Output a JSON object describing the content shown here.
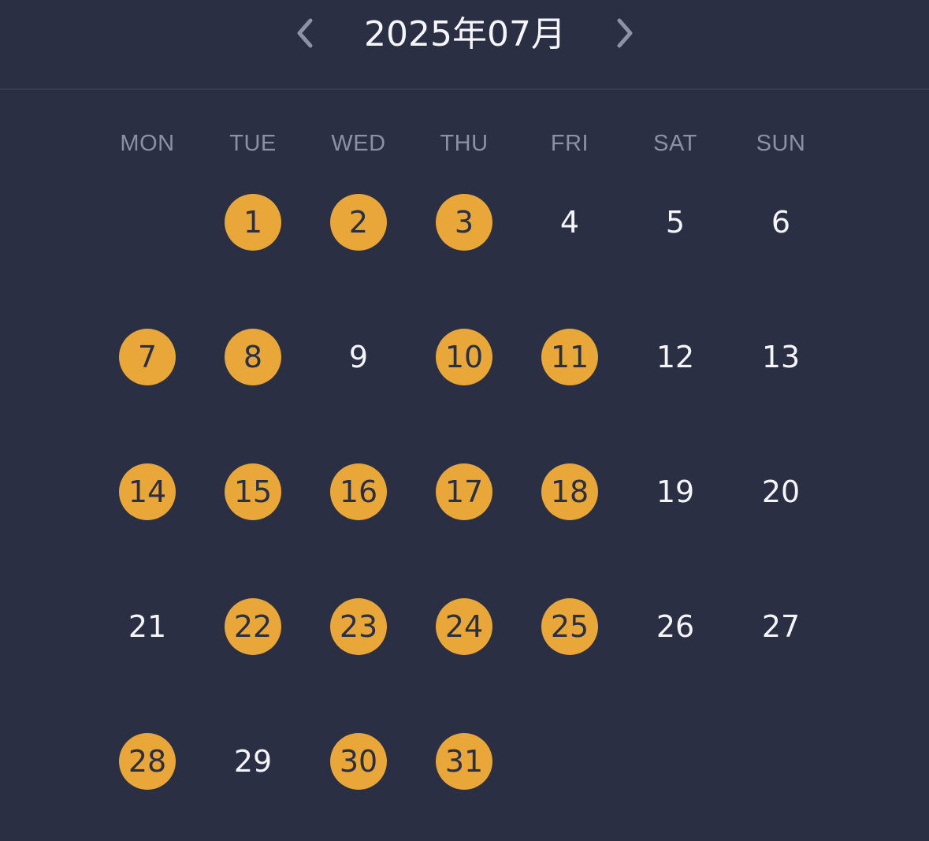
{
  "header": {
    "title": "2025年07月",
    "prev_icon": "chevron-left-icon",
    "next_icon": "chevron-right-icon"
  },
  "weekdays": [
    "MON",
    "TUE",
    "WED",
    "THU",
    "FRI",
    "SAT",
    "SUN"
  ],
  "colors": {
    "background": "#2b2f43",
    "marked": "#e8a738",
    "weekday_text": "#8c90a2",
    "day_text": "#f4f5f8"
  },
  "calendar": {
    "first_weekday_index": 1,
    "days": [
      {
        "label": "1",
        "marked": true
      },
      {
        "label": "2",
        "marked": true
      },
      {
        "label": "3",
        "marked": true
      },
      {
        "label": "4",
        "marked": false
      },
      {
        "label": "5",
        "marked": false
      },
      {
        "label": "6",
        "marked": false
      },
      {
        "label": "7",
        "marked": true
      },
      {
        "label": "8",
        "marked": true
      },
      {
        "label": "9",
        "marked": false
      },
      {
        "label": "10",
        "marked": true
      },
      {
        "label": "11",
        "marked": true
      },
      {
        "label": "12",
        "marked": false
      },
      {
        "label": "13",
        "marked": false
      },
      {
        "label": "14",
        "marked": true
      },
      {
        "label": "15",
        "marked": true
      },
      {
        "label": "16",
        "marked": true
      },
      {
        "label": "17",
        "marked": true
      },
      {
        "label": "18",
        "marked": true
      },
      {
        "label": "19",
        "marked": false
      },
      {
        "label": "20",
        "marked": false
      },
      {
        "label": "21",
        "marked": false
      },
      {
        "label": "22",
        "marked": true
      },
      {
        "label": "23",
        "marked": true
      },
      {
        "label": "24",
        "marked": true
      },
      {
        "label": "25",
        "marked": true
      },
      {
        "label": "26",
        "marked": false
      },
      {
        "label": "27",
        "marked": false
      },
      {
        "label": "28",
        "marked": true
      },
      {
        "label": "29",
        "marked": false
      },
      {
        "label": "30",
        "marked": true
      },
      {
        "label": "31",
        "marked": true
      }
    ]
  }
}
